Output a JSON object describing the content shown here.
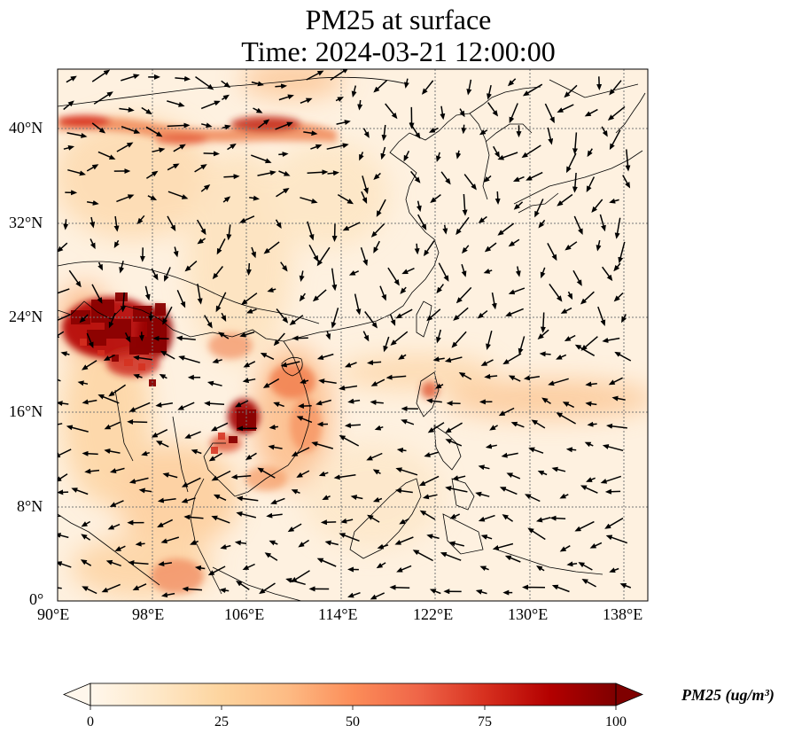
{
  "title": {
    "line1": "PM25 at surface",
    "line2": "Time: 2024-03-21 12:00:00"
  },
  "axes": {
    "x_ticks": [
      "90°E",
      "98°E",
      "106°E",
      "114°E",
      "122°E",
      "130°E",
      "138°E"
    ],
    "y_ticks": [
      "0°",
      "8°N",
      "16°N",
      "24°N",
      "32°N",
      "40°N"
    ],
    "lon_range": [
      90,
      140
    ],
    "lat_range": [
      0,
      45
    ]
  },
  "colorbar": {
    "label": "PM25 (ug/m³)",
    "ticks": [
      "0",
      "25",
      "50",
      "75",
      "100"
    ],
    "range": [
      0,
      100
    ],
    "extend": "both",
    "colormap": "OrRd",
    "colors": [
      "#fff7ec",
      "#fee8c8",
      "#fdd49e",
      "#fdbb84",
      "#fc8d59",
      "#ef6548",
      "#d7301f",
      "#b30000",
      "#7f0000"
    ]
  },
  "chart_data": {
    "type": "heatmap",
    "title": "PM25 at surface\nTime: 2024-03-21 12:00:00",
    "variable": "PM25",
    "units": "ug/m3",
    "xlabel": "",
    "ylabel": "",
    "xlim": [
      90,
      140
    ],
    "ylim": [
      0,
      45
    ],
    "vlim": [
      0,
      100
    ],
    "grid": true,
    "overlay": "wind vectors",
    "hotspots": [
      {
        "lon": 94.5,
        "lat": 23.5,
        "value": 100
      },
      {
        "lon": 98.5,
        "lat": 22.5,
        "value": 100
      },
      {
        "lon": 97,
        "lat": 21.5,
        "value": 95
      },
      {
        "lon": 105.5,
        "lat": 15,
        "value": 90
      },
      {
        "lon": 91.5,
        "lat": 40.5,
        "value": 75
      },
      {
        "lon": 107,
        "lat": 40.3,
        "value": 80
      },
      {
        "lon": 109.5,
        "lat": 16.5,
        "value": 50
      },
      {
        "lon": 110.5,
        "lat": 13.5,
        "value": 45
      },
      {
        "lon": 106,
        "lat": 10.5,
        "value": 40
      },
      {
        "lon": 121.8,
        "lat": 17,
        "value": 55
      },
      {
        "lon": 133,
        "lat": 16.5,
        "value": 35
      },
      {
        "lon": 105,
        "lat": 2,
        "value": 35
      },
      {
        "lon": 109,
        "lat": 44,
        "value": 30
      }
    ]
  }
}
